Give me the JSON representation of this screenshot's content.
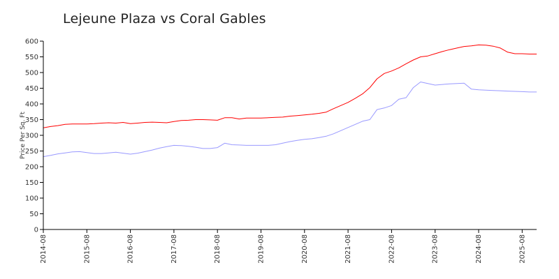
{
  "chart_data": {
    "type": "line",
    "title": "Lejeune Plaza vs Coral Gables",
    "xlabel": "",
    "ylabel": "Price Per Sq. Ft",
    "ylim": [
      0,
      600
    ],
    "yticks": [
      0,
      50,
      100,
      150,
      200,
      250,
      300,
      350,
      400,
      450,
      500,
      550,
      600
    ],
    "xticks": [
      "2014-08",
      "2015-08",
      "2016-08",
      "2017-08",
      "2018-08",
      "2019-08",
      "2020-08",
      "2021-08",
      "2022-08",
      "2023-08",
      "2024-08",
      "2025-08"
    ],
    "x": [
      "2014-08",
      "2014-10",
      "2014-12",
      "2015-02",
      "2015-04",
      "2015-06",
      "2015-08",
      "2015-10",
      "2015-12",
      "2016-02",
      "2016-04",
      "2016-06",
      "2016-08",
      "2016-10",
      "2016-12",
      "2017-02",
      "2017-04",
      "2017-06",
      "2017-08",
      "2017-10",
      "2017-12",
      "2018-02",
      "2018-04",
      "2018-06",
      "2018-08",
      "2018-10",
      "2018-12",
      "2019-02",
      "2019-04",
      "2019-06",
      "2019-08",
      "2019-10",
      "2019-12",
      "2020-02",
      "2020-04",
      "2020-06",
      "2020-08",
      "2020-10",
      "2020-12",
      "2021-02",
      "2021-04",
      "2021-06",
      "2021-08",
      "2021-10",
      "2021-12",
      "2022-02",
      "2022-04",
      "2022-06",
      "2022-08",
      "2022-10",
      "2022-12",
      "2023-02",
      "2023-04",
      "2023-06",
      "2023-08",
      "2023-10",
      "2023-12",
      "2024-02",
      "2024-04",
      "2024-06",
      "2024-08",
      "2024-10",
      "2024-12",
      "2025-02",
      "2025-04",
      "2025-06",
      "2025-08",
      "2025-10",
      "2025-12"
    ],
    "series": [
      {
        "color": "#ff0000",
        "values": [
          324,
          328,
          331,
          335,
          336,
          336,
          336,
          337,
          339,
          340,
          339,
          341,
          337,
          339,
          341,
          342,
          341,
          340,
          344,
          347,
          348,
          350,
          350,
          349,
          348,
          356,
          356,
          352,
          355,
          355,
          355,
          356,
          357,
          358,
          361,
          363,
          365,
          367,
          370,
          374,
          385,
          395,
          405,
          418,
          432,
          452,
          480,
          497,
          505,
          515,
          528,
          540,
          550,
          553,
          560,
          567,
          573,
          578,
          583,
          585,
          588,
          587,
          584,
          578,
          565,
          560,
          560,
          559,
          559
        ]
      },
      {
        "color": "#9999ff",
        "values": [
          232,
          236,
          241,
          244,
          247,
          248,
          245,
          242,
          242,
          244,
          246,
          243,
          240,
          243,
          248,
          253,
          259,
          264,
          268,
          267,
          265,
          262,
          258,
          258,
          261,
          275,
          270,
          269,
          268,
          268,
          268,
          268,
          270,
          275,
          280,
          284,
          287,
          289,
          293,
          297,
          305,
          315,
          325,
          335,
          345,
          350,
          382,
          387,
          395,
          415,
          420,
          452,
          470,
          465,
          460,
          462,
          464,
          465,
          466,
          447,
          445,
          444,
          443,
          442,
          441,
          440,
          439,
          438,
          438
        ]
      }
    ]
  }
}
